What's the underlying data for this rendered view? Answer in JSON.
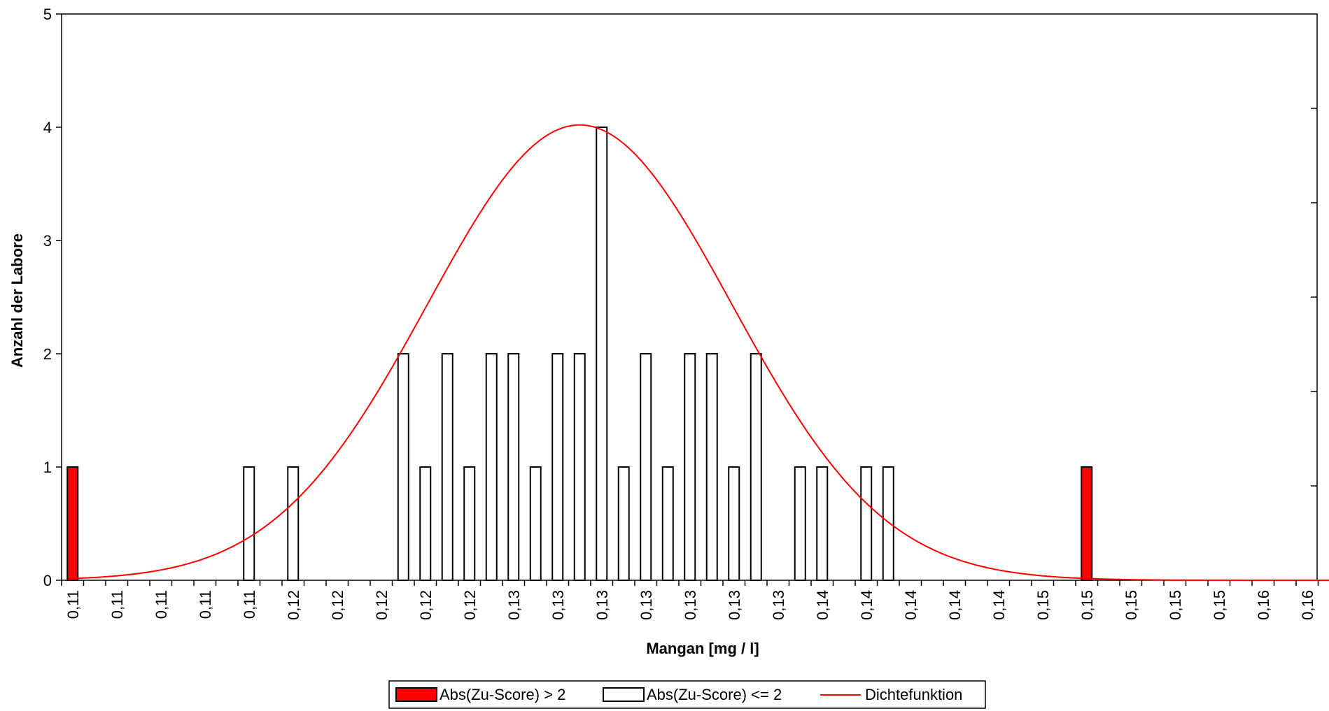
{
  "chart_data": {
    "type": "bar",
    "xlabel": "Mangan [mg / l]",
    "ylabel": "Anzahl der Labore",
    "ylim": [
      0,
      5
    ],
    "y_ticks": [
      0,
      1,
      2,
      3,
      4,
      5
    ],
    "grid": false,
    "legend_position": "bottom",
    "categories": [
      "0,11",
      "0,11",
      "0,11",
      "0,11",
      "0,11",
      "0,12",
      "0,12",
      "0,12",
      "0,12",
      "0,12",
      "0,13",
      "0,13",
      "0,13",
      "0,13",
      "0,13",
      "0,13",
      "0,13",
      "0,14",
      "0,14",
      "0,14",
      "0,14",
      "0,14",
      "0,15",
      "0,15",
      "0,15",
      "0,15",
      "0,15",
      "0,16",
      "0,16",
      "0,16",
      "0,16"
    ],
    "bar_x": [
      0.5,
      8.5,
      10.5,
      15.5,
      16.5,
      17.5,
      18.5,
      19.5,
      20.5,
      21.5,
      22.5,
      23.5,
      24.5,
      25.5,
      26.5,
      27.5,
      28.5,
      29.5,
      30.5,
      31.5,
      33.5,
      34.5,
      36.5,
      37.5,
      46.5
    ],
    "series": [
      {
        "name": "Abs(Zu-Score) > 2",
        "color": "#ff0000",
        "x": [
          0.5,
          46.5
        ],
        "values": [
          1,
          1
        ]
      },
      {
        "name": "Abs(Zu-Score) <= 2",
        "color": "#ffffff",
        "x": [
          8.5,
          10.5,
          15.5,
          16.5,
          17.5,
          18.5,
          19.5,
          20.5,
          21.5,
          22.5,
          23.5,
          24.5,
          25.5,
          26.5,
          27.5,
          28.5,
          29.5,
          30.5,
          31.5,
          33.5,
          34.5,
          36.5,
          37.5
        ],
        "values": [
          1,
          1,
          2,
          1,
          2,
          1,
          2,
          2,
          1,
          2,
          2,
          4,
          1,
          2,
          1,
          2,
          2,
          1,
          2,
          1,
          1,
          1,
          1
        ]
      },
      {
        "name": "Dichtefunktion",
        "type": "line",
        "color": "#ff0000",
        "mean": 23.5,
        "sd": 6.9,
        "peak": 4.02,
        "x_range": [
          0.5,
          57.5
        ]
      }
    ],
    "legend": [
      {
        "label": "Abs(Zu-Score) > 2",
        "symbol": "red-box"
      },
      {
        "label": "Abs(Zu-Score) <= 2",
        "symbol": "white-box"
      },
      {
        "label": "Dichtefunktion",
        "symbol": "red-line"
      }
    ]
  }
}
